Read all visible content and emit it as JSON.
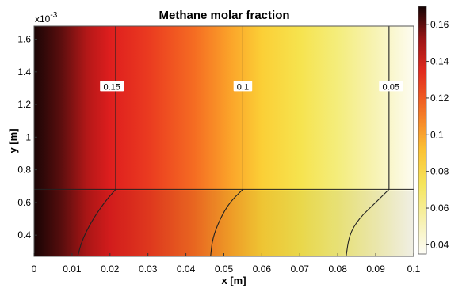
{
  "chart_data": {
    "type": "heatmap",
    "title": "Methane molar fraction",
    "xlabel": "x [m]",
    "ylabel": "y [m]",
    "y_multiplier": "x10",
    "y_multiplier_exponent": "-3",
    "xlim": [
      0,
      0.1
    ],
    "ylim": [
      0.00027,
      0.00168
    ],
    "x_ticks": [
      "0",
      "0.01",
      "0.02",
      "0.03",
      "0.04",
      "0.05",
      "0.06",
      "0.07",
      "0.08",
      "0.09",
      "0.1"
    ],
    "y_ticks": [
      {
        "value": 0.0004,
        "label": "0.4"
      },
      {
        "value": 0.0006,
        "label": "0.6"
      },
      {
        "value": 0.0008,
        "label": "0.8"
      },
      {
        "value": 0.001,
        "label": "1"
      },
      {
        "value": 0.0012,
        "label": "1.2"
      },
      {
        "value": 0.0014,
        "label": "1.4"
      },
      {
        "value": 0.0016,
        "label": "1.6"
      }
    ],
    "colorbar": {
      "range": [
        0.035,
        0.17
      ],
      "colormap": "heat",
      "ticks": [
        "0.04",
        "0.06",
        "0.08",
        "0.1",
        "0.12",
        "0.14",
        "0.16"
      ]
    },
    "interface_y": 0.00068,
    "contours": [
      {
        "label": "0.15",
        "label_x": 0.0205,
        "label_y": 0.00131,
        "upper": [
          [
            0.0215,
            0.00168
          ],
          [
            0.0215,
            0.00068
          ]
        ],
        "lower": [
          [
            0.0215,
            0.00068
          ],
          [
            0.0185,
            0.0006
          ],
          [
            0.015,
            0.00048
          ],
          [
            0.0125,
            0.00036
          ],
          [
            0.0115,
            0.00027
          ]
        ]
      },
      {
        "label": "0.1",
        "label_x": 0.055,
        "label_y": 0.00131,
        "upper": [
          [
            0.055,
            0.00168
          ],
          [
            0.055,
            0.00068
          ]
        ],
        "lower": [
          [
            0.055,
            0.00068
          ],
          [
            0.0515,
            0.0006
          ],
          [
            0.049,
            0.0005
          ],
          [
            0.047,
            0.00038
          ],
          [
            0.0465,
            0.00027
          ]
        ]
      },
      {
        "label": "0.05",
        "label_x": 0.094,
        "label_y": 0.00131,
        "upper": [
          [
            0.0935,
            0.00168
          ],
          [
            0.0935,
            0.00068
          ]
        ],
        "lower": [
          [
            0.0935,
            0.00068
          ],
          [
            0.09,
            0.0006
          ],
          [
            0.0855,
            0.0005
          ],
          [
            0.083,
            0.0004
          ],
          [
            0.0822,
            0.00027
          ]
        ]
      }
    ]
  }
}
